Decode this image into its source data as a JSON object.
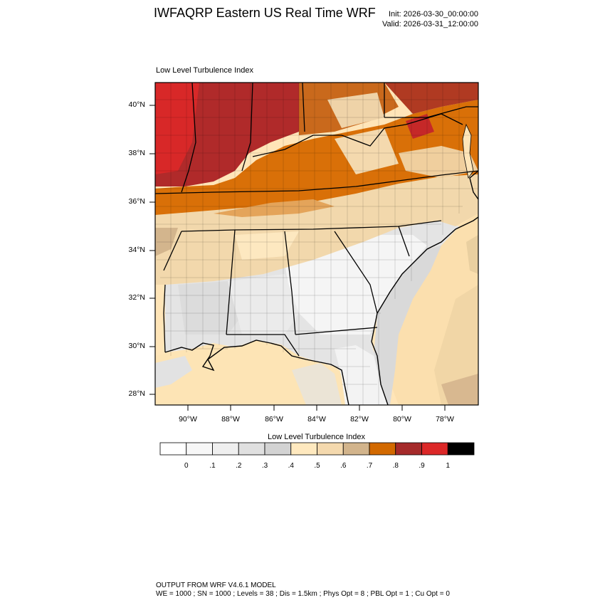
{
  "header": {
    "title": "IWFAQRP Eastern US Real Time WRF",
    "init": "Init: 2026-03-30_00:00:00",
    "valid": "Valid: 2026-03-31_12:00:00"
  },
  "map": {
    "subtitle": "Low Level Turbulence Index",
    "lat_labels": [
      "40°N",
      "38°N",
      "36°N",
      "34°N",
      "32°N",
      "30°N",
      "28°N"
    ],
    "lon_labels": [
      "90°W",
      "88°W",
      "86°W",
      "84°W",
      "82°W",
      "80°W",
      "78°W"
    ],
    "extent": {
      "west": -91.5,
      "east": -76.5,
      "south": 27.5,
      "north": 40.9
    }
  },
  "colorbar": {
    "title": "Low Level Turbulence Index",
    "tick_labels": [
      "0",
      ".1",
      ".2",
      ".3",
      ".4",
      ".5",
      ".6",
      ".7",
      ".8",
      ".9",
      "1"
    ],
    "colors": [
      "#ffffff",
      "#f7f7f7",
      "#efefef",
      "#e0e0e0",
      "#d3d3d3",
      "#ffe9bf",
      "#f4d9ae",
      "#d2b48c",
      "#d26900",
      "#a52a2a",
      "#dc2828",
      "#000000"
    ]
  },
  "footer": {
    "line1": "OUTPUT FROM WRF V4.6.1 MODEL",
    "line2": "WE = 1000 ; SN = 1000 ; Levels = 38 ; Dis = 1.5km ; Phys Opt = 8 ; PBL Opt = 1 ; Cu Opt = 0"
  }
}
